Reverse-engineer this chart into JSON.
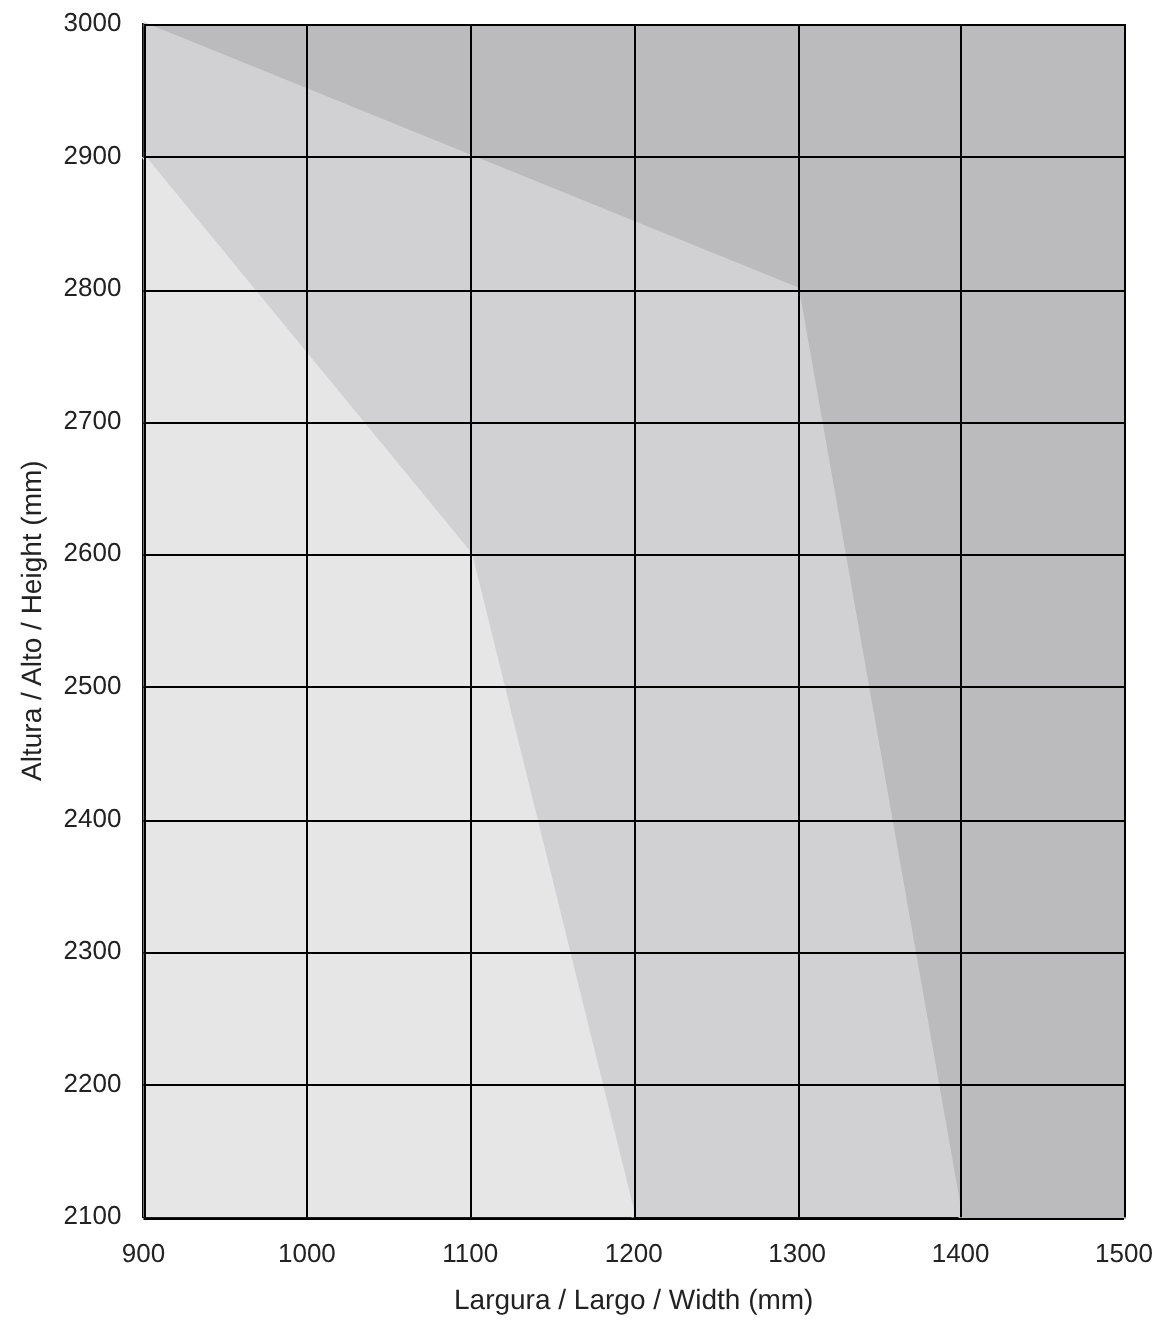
{
  "chart_data": {
    "type": "area",
    "xlabel": "Largura / Largo / Width (mm)",
    "ylabel": "Altura / Alto / Height (mm)",
    "series": [
      {
        "color": "#e6e6e7",
        "x": [
          900,
          1100,
          1200
        ],
        "values": [
          2900,
          2600,
          2100
        ]
      },
      {
        "color": "#d1d1d3",
        "x": [
          900,
          1100,
          1300,
          1400
        ],
        "values": [
          3000,
          2900,
          2800,
          2100
        ]
      },
      {
        "color": "#bbbbbe",
        "x": [
          900,
          1100,
          1300,
          1400,
          1500,
          1500
        ],
        "values": [
          3000,
          2900,
          2800,
          2100,
          2100,
          3000
        ]
      }
    ],
    "xlim": [
      900,
      1500
    ],
    "xticks": [
      900,
      1000,
      1100,
      1200,
      1300,
      1400,
      1500
    ],
    "ylim": [
      2100,
      3000
    ],
    "yticks": [
      2100,
      2200,
      2300,
      2400,
      2500,
      2600,
      2700,
      2800,
      2900,
      3000
    ],
    "grid": true,
    "legend": false
  }
}
